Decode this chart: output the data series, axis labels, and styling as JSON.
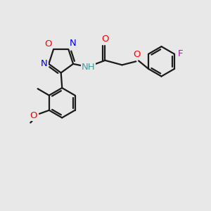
{
  "background_color": "#e8e8e8",
  "bond_color": "#1a1a1a",
  "bond_width": 1.6,
  "figsize": [
    3.0,
    3.0
  ],
  "dpi": 100,
  "colors": {
    "O": "#ff0000",
    "N": "#0000ee",
    "F": "#cc00cc",
    "NH": "#4d9999",
    "C": "#1a1a1a"
  }
}
